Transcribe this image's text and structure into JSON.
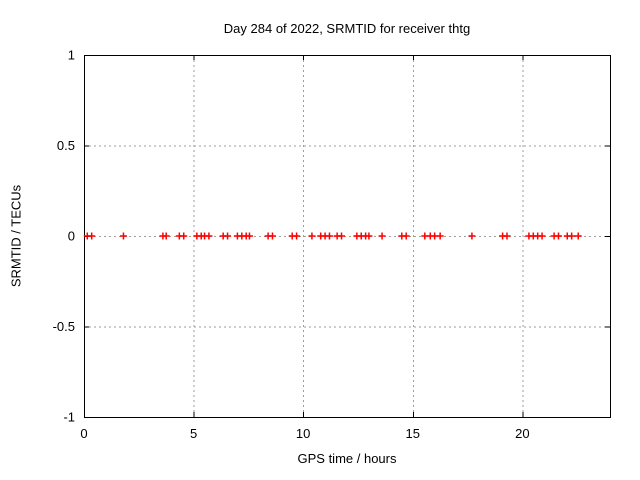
{
  "chart_data": {
    "type": "scatter",
    "title": "Day 284 of 2022, SRMTID for receiver thtg",
    "xlabel": "GPS time / hours",
    "ylabel": "SRMTID / TECUs",
    "xlim": [
      0,
      24
    ],
    "ylim": [
      -1,
      1
    ],
    "xticks": [
      0,
      5,
      10,
      15,
      20
    ],
    "yticks": [
      1,
      0.5,
      0,
      -0.5,
      -1
    ],
    "ytick_labels": [
      "1",
      "0.5",
      "0",
      "-0.5",
      "-1"
    ],
    "grid": true,
    "legend": false,
    "marker": {
      "shape": "plus",
      "color": "#ff0000",
      "size": 7
    },
    "grid_color": "#9e9e9e",
    "border_color": "#000000",
    "background_color": "#ffffff",
    "series": [
      {
        "name": "SRMTID",
        "x": [
          0.15,
          0.35,
          1.8,
          3.6,
          3.75,
          4.35,
          4.55,
          5.15,
          5.35,
          5.5,
          5.7,
          6.35,
          6.55,
          7.0,
          7.2,
          7.4,
          7.55,
          8.4,
          8.6,
          9.5,
          9.7,
          10.4,
          10.8,
          11.0,
          11.2,
          11.55,
          11.75,
          12.45,
          12.65,
          12.85,
          13.0,
          13.6,
          14.5,
          14.7,
          15.55,
          15.8,
          16.0,
          16.25,
          17.7,
          19.1,
          19.3,
          20.3,
          20.5,
          20.7,
          20.9,
          21.45,
          21.65,
          22.05,
          22.25,
          22.55
        ],
        "y": [
          0,
          0,
          0,
          0,
          0,
          0,
          0,
          0,
          0,
          0,
          0,
          0,
          0,
          0,
          0,
          0,
          0,
          0,
          0,
          0,
          0,
          0,
          0,
          0,
          0,
          0,
          0,
          0,
          0,
          0,
          0,
          0,
          0,
          0,
          0,
          0,
          0,
          0,
          0,
          0,
          0,
          0,
          0,
          0,
          0,
          0,
          0,
          0,
          0,
          0
        ]
      }
    ]
  }
}
